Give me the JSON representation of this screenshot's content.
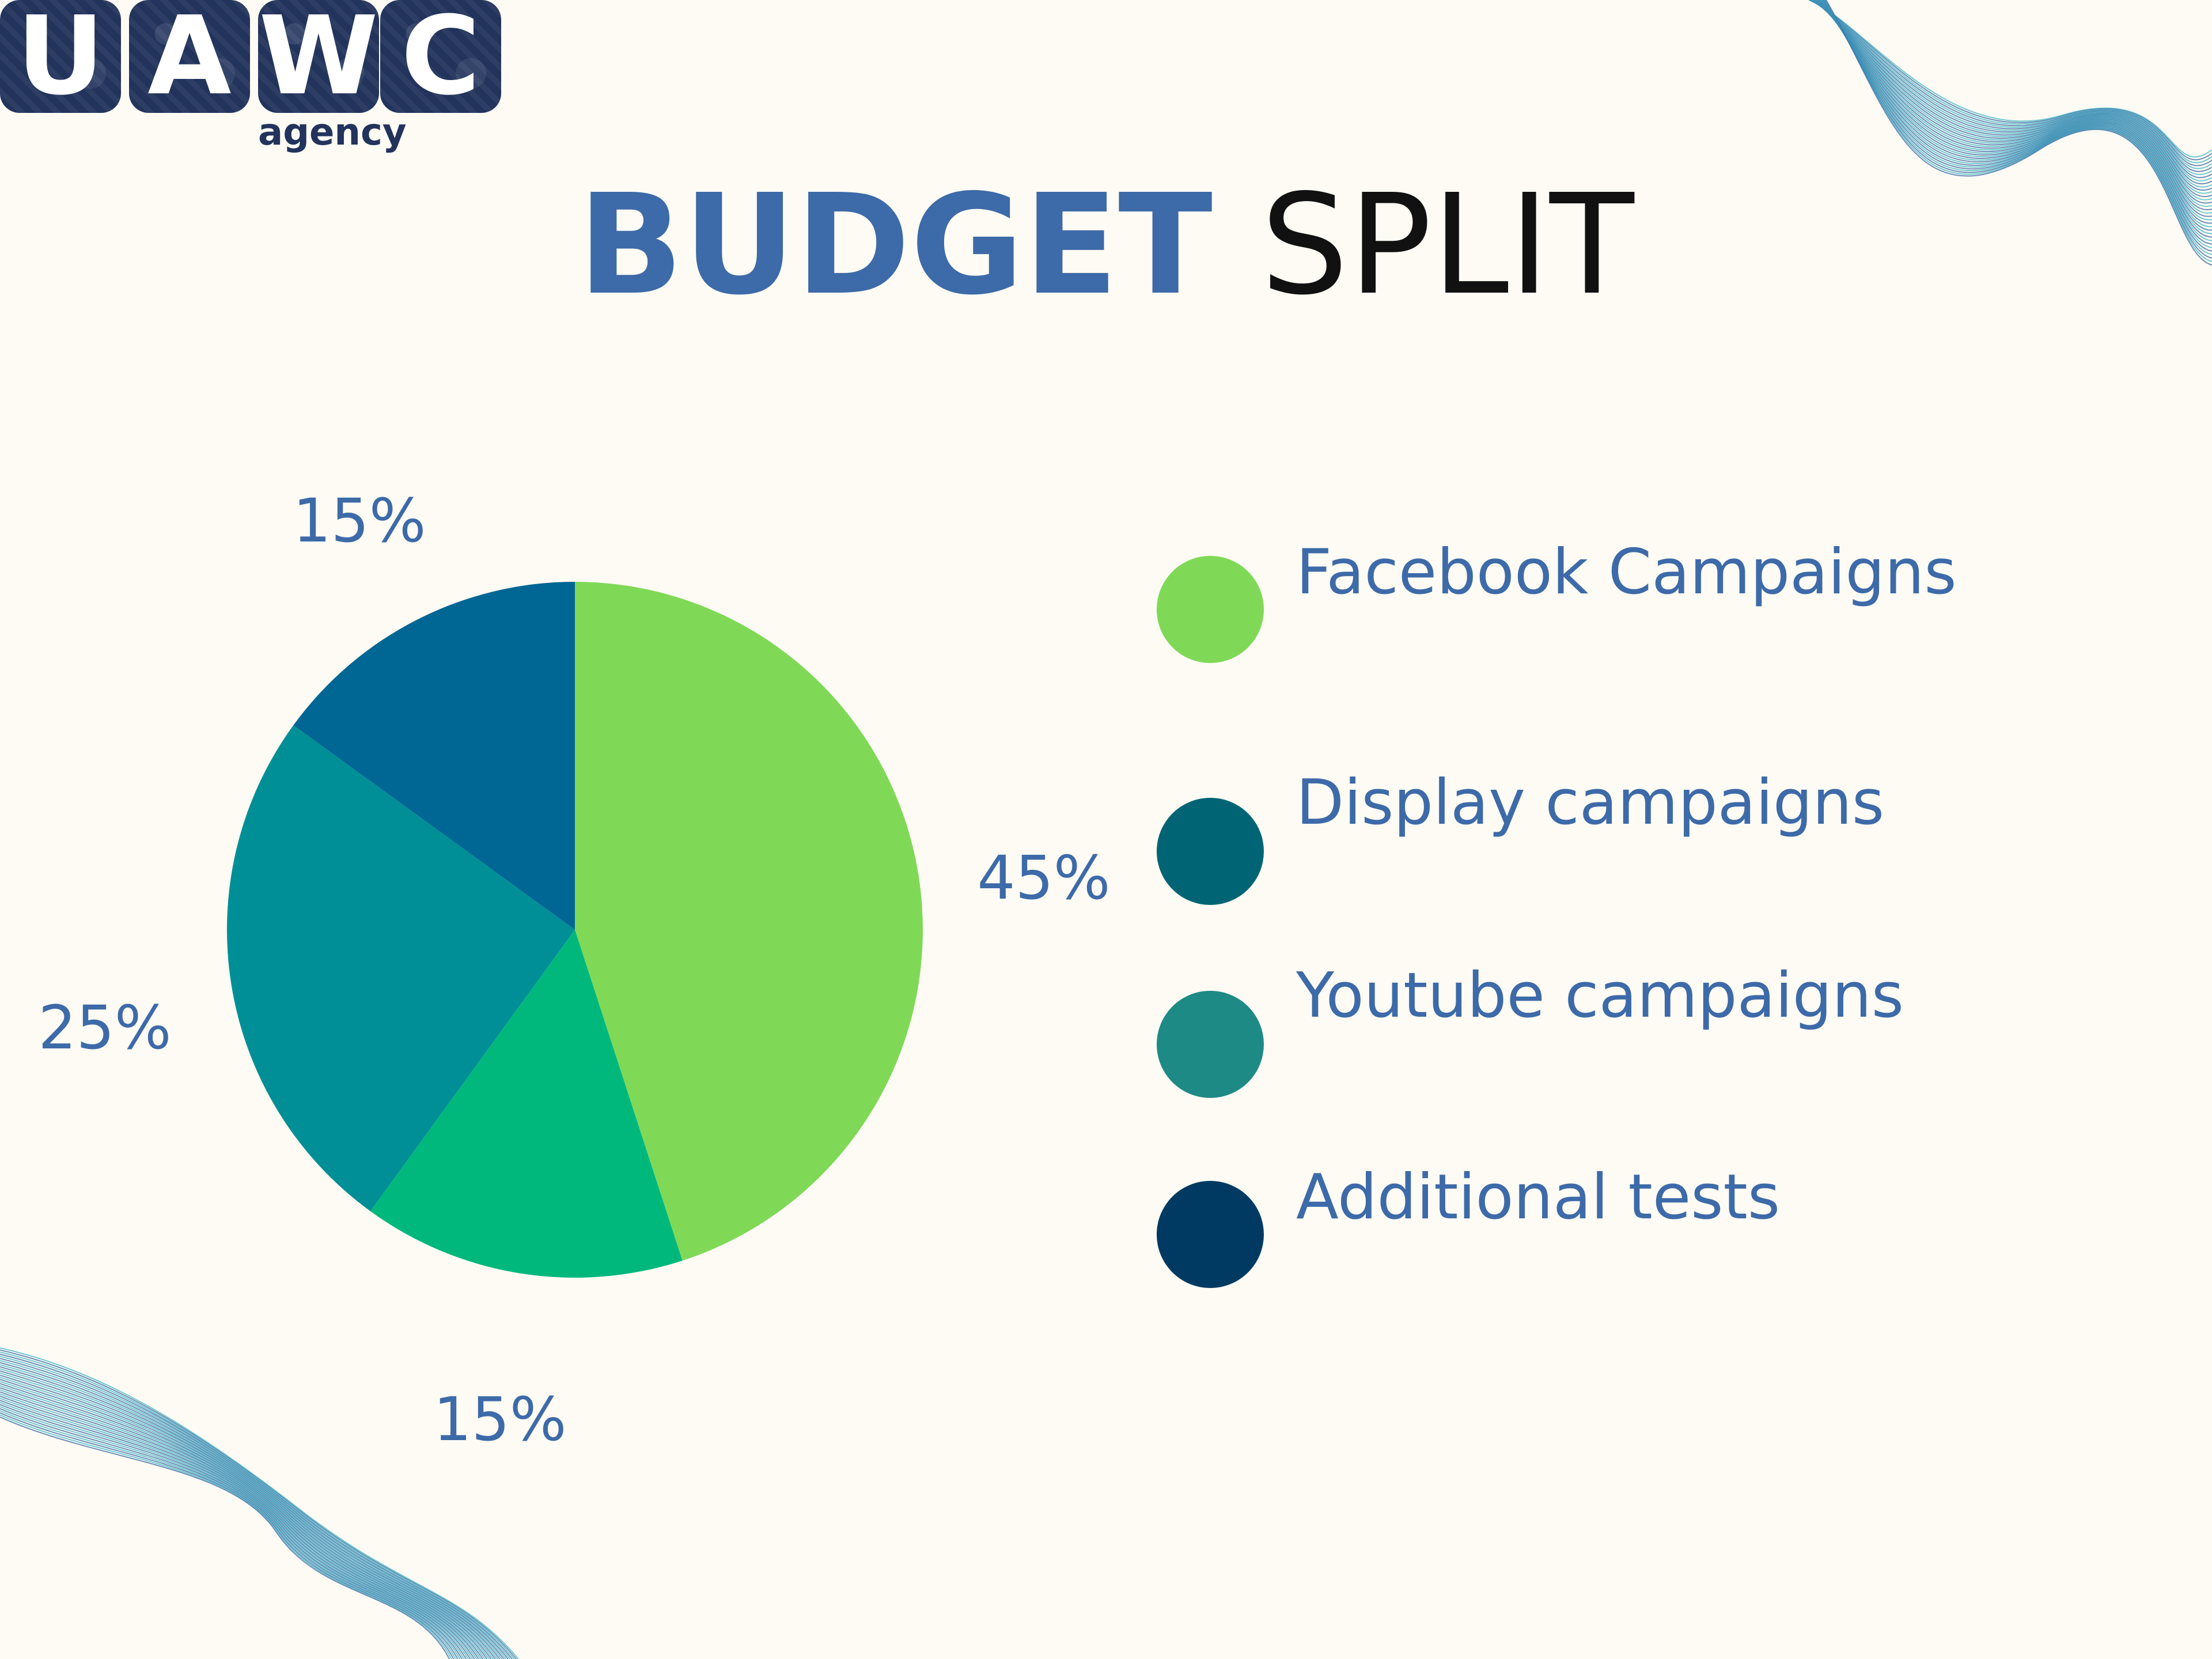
{
  "logo": {
    "letters": [
      "U",
      "A",
      "W",
      "C"
    ],
    "subtitle": "agency",
    "color": "#22335c"
  },
  "title": {
    "part1": "BUDGET",
    "part2": "SPLIT",
    "part1_color": "#3d6aa8",
    "part2_color": "#111111"
  },
  "chart_data": {
    "type": "pie",
    "title": "BUDGET SPLIT",
    "slices": [
      {
        "label": "Facebook Campaigns",
        "value": 45,
        "value_label": "45%",
        "color": "#7fd957"
      },
      {
        "label": "Display campaigns",
        "value": 15,
        "value_label": "15%",
        "color": "#00b87c"
      },
      {
        "label": "Youtube campaigns",
        "value": 25,
        "value_label": "25%",
        "color": "#008f96"
      },
      {
        "label": "Additional tests",
        "value": 15,
        "value_label": "15%",
        "color": "#006694"
      }
    ],
    "legend": [
      {
        "label": "Facebook Campaigns",
        "color": "#7fd957"
      },
      {
        "label": "Display campaigns",
        "color": "#006474"
      },
      {
        "label": "Youtube campaigns",
        "color": "#1e8a86"
      },
      {
        "label": "Additional tests",
        "color": "#003a62"
      }
    ],
    "legend_position": "right",
    "label_color": "#3d6aa8"
  }
}
